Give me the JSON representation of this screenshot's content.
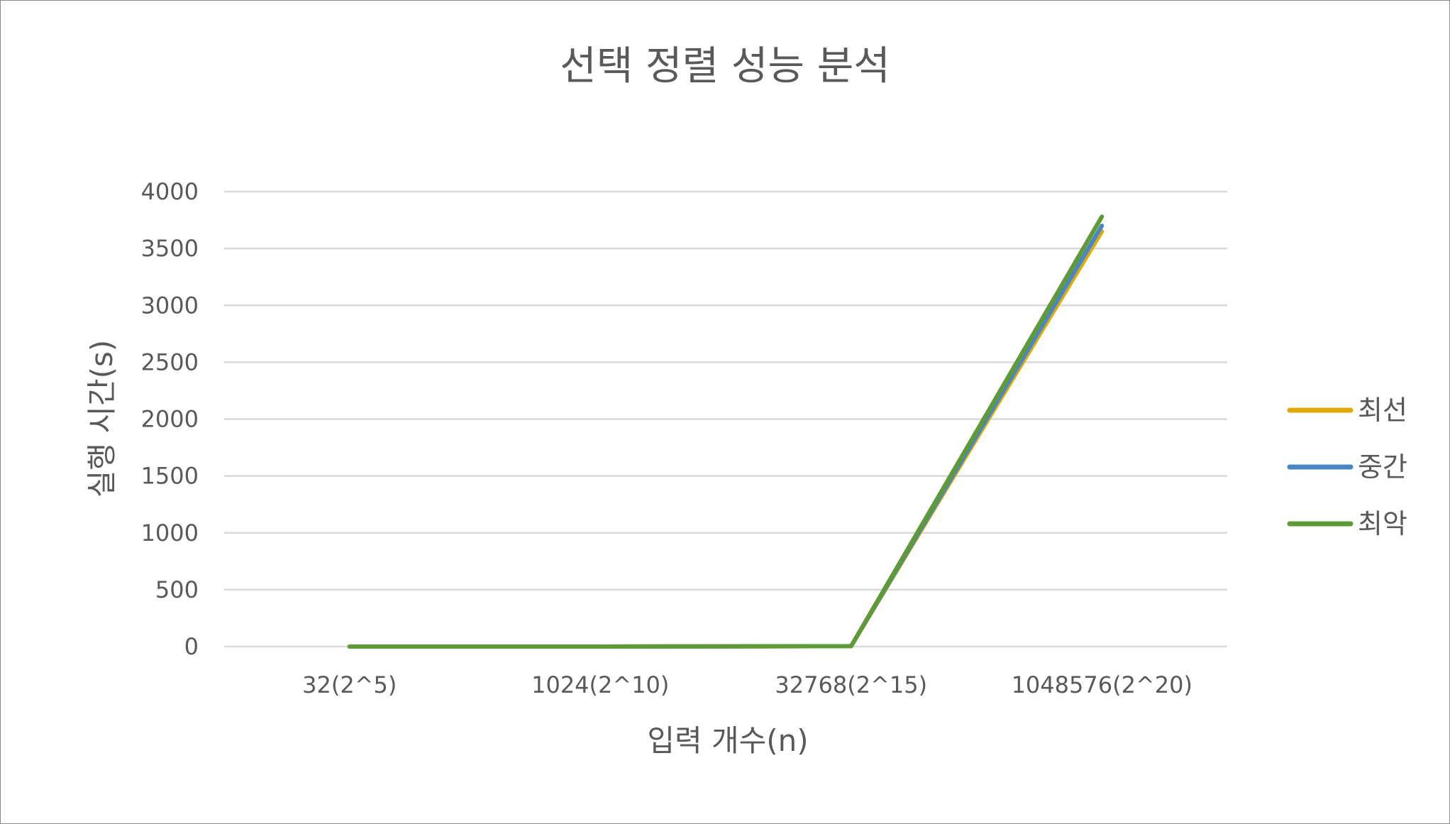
{
  "chart_data": {
    "type": "line",
    "title": "선택 정렬 성능 분석",
    "xlabel": "입력 개수(n)",
    "ylabel": "실행 시간(s)",
    "categories": [
      "32(2^5)",
      "1024(2^10)",
      "32768(2^15)",
      "1048576(2^20)"
    ],
    "ylim": [
      0,
      4000
    ],
    "yticks": [
      0,
      500,
      1000,
      1500,
      2000,
      2500,
      3000,
      3500,
      4000
    ],
    "grid": true,
    "legend_position": "right",
    "series": [
      {
        "name": "최선",
        "color": "#E0A800",
        "values": [
          0,
          0,
          3.6,
          3650
        ]
      },
      {
        "name": "중간",
        "color": "#4A86C5",
        "values": [
          0,
          0,
          3.7,
          3700
        ]
      },
      {
        "name": "최악",
        "color": "#5E9A35",
        "values": [
          0,
          0,
          3.8,
          3780
        ]
      }
    ]
  }
}
